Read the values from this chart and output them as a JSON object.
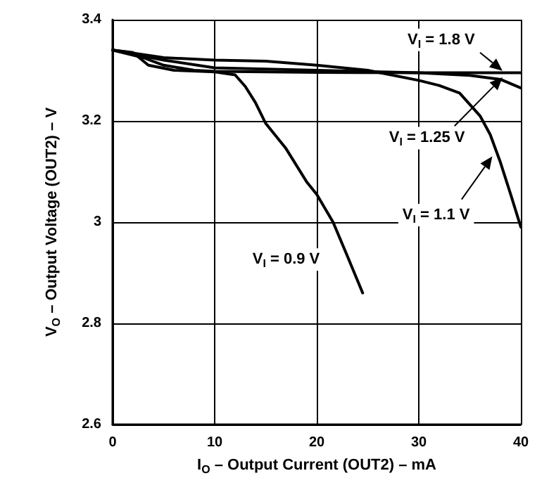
{
  "chart_data": {
    "type": "line",
    "xlabel": "I$_{O}$ – Output Current (OUT2) – mA",
    "ylabel": "V$_{O}$ – Output Voltage (OUT2) – V",
    "xlim": [
      0,
      40
    ],
    "xticks": [
      0,
      10,
      20,
      30,
      40
    ],
    "ylim": [
      2.6,
      3.4
    ],
    "yticks": [
      2.6,
      2.8,
      3,
      3.2,
      3.4
    ],
    "grid": true,
    "marker": "none",
    "line_style": "solid",
    "series": [
      {
        "name": "V$_{I}$ = 1.8 V",
        "color": "#000000",
        "x": [
          0,
          3,
          5,
          8,
          10,
          20,
          30,
          40
        ],
        "values": [
          3.34,
          3.325,
          3.31,
          3.3,
          3.298,
          3.296,
          3.295,
          3.295
        ]
      },
      {
        "name": "V$_{I}$ = 1.25 V",
        "color": "#000000",
        "x": [
          0,
          5,
          10,
          20,
          30,
          35,
          38,
          40
        ],
        "values": [
          3.34,
          3.32,
          3.305,
          3.3,
          3.295,
          3.29,
          3.282,
          3.265
        ]
      },
      {
        "name": "V$_{I}$ = 1.1 V",
        "color": "#000000",
        "x": [
          0,
          5,
          10,
          15,
          20,
          25,
          30,
          32,
          34,
          36,
          37,
          38,
          39,
          40
        ],
        "values": [
          3.34,
          3.325,
          3.32,
          3.318,
          3.31,
          3.3,
          3.28,
          3.27,
          3.255,
          3.21,
          3.173,
          3.118,
          3.055,
          2.99
        ]
      },
      {
        "name": "V$_{I}$ = 0.9 V",
        "color": "#000000",
        "x": [
          0,
          2,
          3.5,
          6,
          10,
          12,
          13,
          14,
          15,
          17,
          19,
          20,
          21.6,
          23,
          24.5
        ],
        "values": [
          3.34,
          3.335,
          3.31,
          3.3,
          3.297,
          3.291,
          3.268,
          3.236,
          3.195,
          3.145,
          3.08,
          3.055,
          3,
          2.933,
          2.86
        ]
      }
    ]
  }
}
